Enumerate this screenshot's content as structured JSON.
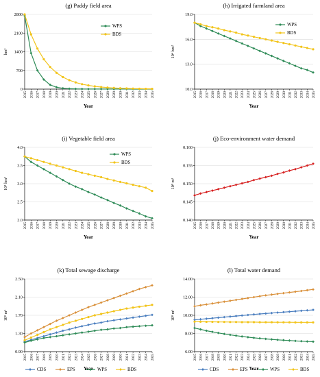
{
  "years": [
    "2015",
    "2016",
    "2017",
    "2018",
    "2019",
    "2020",
    "2021",
    "2022",
    "2023",
    "2024",
    "2025",
    "2026",
    "2027",
    "2028",
    "2029",
    "2030",
    "2031",
    "2032",
    "2033",
    "2034",
    "2035"
  ],
  "colors": {
    "CDS": "#4a7ebf",
    "EPS": "#d9903a",
    "WPS": "#2e8b57",
    "BDS": "#f2c41a",
    "red": "#d62020"
  },
  "chart_data": [
    {
      "type": "line",
      "title": "(g) Paddy field area",
      "xlabel": "Year",
      "ylabel": "hm²",
      "ylim": [
        0,
        2800
      ],
      "yticks": [
        "0",
        "700",
        "1400",
        "2100",
        "2800"
      ],
      "legend": "right",
      "series": [
        {
          "name": "WPS",
          "key": "WPS",
          "values": [
            2750,
            1350,
            700,
            360,
            160,
            70,
            30,
            15,
            8,
            5,
            4,
            3,
            3,
            2,
            2,
            2,
            2,
            1,
            1,
            1,
            1
          ]
        },
        {
          "name": "BDS",
          "key": "BDS",
          "values": [
            2800,
            2050,
            1520,
            1120,
            830,
            610,
            450,
            335,
            250,
            185,
            138,
            103,
            78,
            58,
            44,
            33,
            25,
            19,
            15,
            11,
            9
          ]
        }
      ]
    },
    {
      "type": "line",
      "title": "(h) Irrigated  farmland area",
      "xlabel": "Year",
      "ylabel": "10⁴ hm²",
      "ylim": [
        10,
        19
      ],
      "yticks": [
        "10.0",
        "13.0",
        "16.0",
        "19.0"
      ],
      "legend": "top-right",
      "series": [
        {
          "name": "WPS",
          "key": "WPS",
          "values": [
            18.0,
            17.6,
            17.3,
            17.0,
            16.7,
            16.4,
            16.1,
            15.8,
            15.5,
            15.2,
            14.9,
            14.6,
            14.3,
            14.0,
            13.7,
            13.4,
            13.1,
            12.8,
            12.5,
            12.3,
            12.0
          ]
        },
        {
          "name": "BDS",
          "key": "BDS",
          "values": [
            18.0,
            17.8,
            17.6,
            17.45,
            17.3,
            17.1,
            16.95,
            16.8,
            16.6,
            16.45,
            16.3,
            16.15,
            16.0,
            15.85,
            15.7,
            15.55,
            15.4,
            15.25,
            15.1,
            14.95,
            14.8
          ]
        }
      ]
    },
    {
      "type": "line",
      "title": "(i) Vegetable  field area",
      "xlabel": "Year",
      "ylabel": "10⁴ hm²",
      "ylim": [
        2.0,
        4.0
      ],
      "yticks": [
        "2.0",
        "2.5",
        "3.0",
        "3.5",
        "4.0"
      ],
      "legend": "top-right",
      "series": [
        {
          "name": "WPS",
          "key": "WPS",
          "values": [
            3.75,
            3.6,
            3.5,
            3.4,
            3.3,
            3.2,
            3.1,
            3.0,
            2.92,
            2.85,
            2.77,
            2.7,
            2.62,
            2.55,
            2.47,
            2.4,
            2.32,
            2.25,
            2.18,
            2.1,
            2.05
          ]
        },
        {
          "name": "BDS",
          "key": "BDS",
          "values": [
            3.75,
            3.7,
            3.65,
            3.6,
            3.55,
            3.5,
            3.45,
            3.4,
            3.35,
            3.3,
            3.26,
            3.22,
            3.18,
            3.13,
            3.09,
            3.05,
            3.01,
            2.97,
            2.93,
            2.89,
            2.8
          ]
        }
      ]
    },
    {
      "type": "line",
      "title": "(j) Eco-environment water demand",
      "xlabel": "Year",
      "ylabel": "10⁸ m³",
      "ylim": [
        0.14,
        0.16
      ],
      "yticks": [
        "0.140",
        "0.145",
        "0.150",
        "0.155",
        "0.160"
      ],
      "legend": "none",
      "series": [
        {
          "key": "red",
          "values": [
            0.1468,
            0.1473,
            0.1477,
            0.1481,
            0.1485,
            0.1489,
            0.1493,
            0.1497,
            0.1501,
            0.1505,
            0.151,
            0.1514,
            0.1518,
            0.1522,
            0.1527,
            0.1531,
            0.1536,
            0.154,
            0.1545,
            0.155,
            0.1555
          ]
        }
      ]
    },
    {
      "type": "line",
      "title": "(k) Total sewage discharge",
      "xlabel": "Year",
      "ylabel": "10⁸ m³",
      "ylim": [
        0.9,
        2.5
      ],
      "yticks": [
        "0.90",
        "1.30",
        "1.70",
        "2.10",
        "2.50"
      ],
      "legend": "bottom",
      "series": [
        {
          "name": "CDS",
          "key": "CDS",
          "values": [
            1.12,
            1.16,
            1.2,
            1.24,
            1.28,
            1.32,
            1.36,
            1.39,
            1.43,
            1.46,
            1.49,
            1.52,
            1.54,
            1.57,
            1.59,
            1.61,
            1.63,
            1.65,
            1.67,
            1.69,
            1.71
          ]
        },
        {
          "name": "EPS",
          "key": "EPS",
          "values": [
            1.22,
            1.3,
            1.37,
            1.44,
            1.51,
            1.58,
            1.64,
            1.7,
            1.76,
            1.82,
            1.88,
            1.93,
            1.98,
            2.03,
            2.08,
            2.13,
            2.18,
            2.23,
            2.28,
            2.32,
            2.36
          ]
        },
        {
          "name": "WPS",
          "key": "WPS",
          "values": [
            1.1,
            1.14,
            1.17,
            1.2,
            1.22,
            1.24,
            1.26,
            1.28,
            1.3,
            1.32,
            1.34,
            1.36,
            1.38,
            1.39,
            1.41,
            1.42,
            1.44,
            1.45,
            1.46,
            1.47,
            1.48
          ]
        },
        {
          "name": "BDS",
          "key": "BDS",
          "values": [
            1.15,
            1.21,
            1.27,
            1.33,
            1.39,
            1.44,
            1.49,
            1.54,
            1.58,
            1.62,
            1.66,
            1.7,
            1.73,
            1.76,
            1.79,
            1.82,
            1.85,
            1.87,
            1.89,
            1.91,
            1.93
          ]
        }
      ]
    },
    {
      "type": "line",
      "title": "(l) Total water demand",
      "xlabel": "Year",
      "ylabel": "10⁸ m³",
      "ylim": [
        6,
        14
      ],
      "yticks": [
        "6.00",
        "8.00",
        "10.00",
        "12.00",
        "14.00"
      ],
      "legend": "bottom",
      "series": [
        {
          "name": "CDS",
          "key": "CDS",
          "values": [
            9.5,
            9.56,
            9.62,
            9.68,
            9.74,
            9.8,
            9.86,
            9.92,
            9.98,
            10.04,
            10.1,
            10.15,
            10.2,
            10.25,
            10.3,
            10.35,
            10.4,
            10.45,
            10.5,
            10.55,
            10.6
          ]
        },
        {
          "name": "EPS",
          "key": "EPS",
          "values": [
            11.0,
            11.1,
            11.2,
            11.3,
            11.4,
            11.5,
            11.6,
            11.7,
            11.8,
            11.9,
            12.0,
            12.1,
            12.2,
            12.28,
            12.36,
            12.44,
            12.52,
            12.6,
            12.68,
            12.76,
            12.85
          ]
        },
        {
          "name": "WPS",
          "key": "WPS",
          "values": [
            8.6,
            8.45,
            8.3,
            8.18,
            8.06,
            7.95,
            7.85,
            7.76,
            7.67,
            7.59,
            7.52,
            7.46,
            7.4,
            7.35,
            7.3,
            7.26,
            7.22,
            7.18,
            7.15,
            7.12,
            7.1
          ]
        },
        {
          "name": "BDS",
          "key": "BDS",
          "values": [
            9.3,
            9.29,
            9.28,
            9.28,
            9.27,
            9.27,
            9.26,
            9.26,
            9.25,
            9.25,
            9.25,
            9.24,
            9.24,
            9.24,
            9.23,
            9.23,
            9.23,
            9.22,
            9.22,
            9.22,
            9.22
          ]
        }
      ]
    }
  ]
}
